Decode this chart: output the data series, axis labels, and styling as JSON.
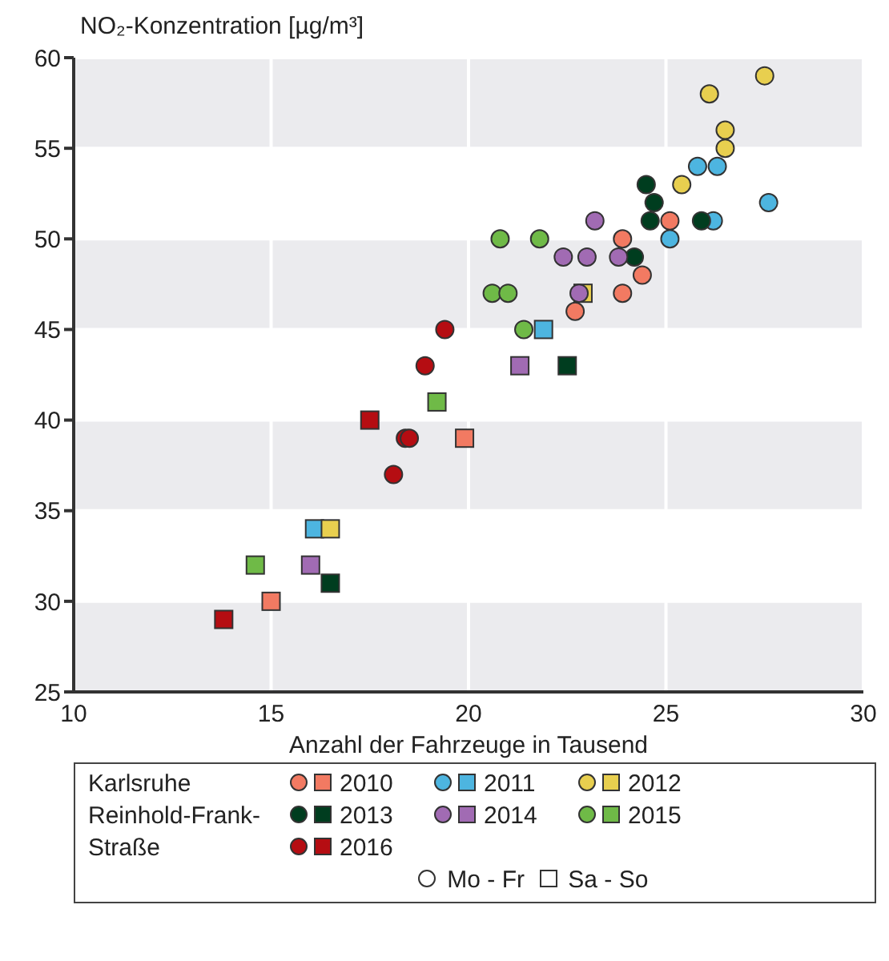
{
  "chart_data": {
    "type": "scatter",
    "ylabel": "NO₂-Konzentration [µg/m³]",
    "xlabel": "Anzahl der Fahrzeuge in Tausend",
    "legend_title": "Karlsruhe Reinhold-Frank-Straße",
    "annotations": [
      "Mo - Fr",
      "Sa - So"
    ],
    "xlim": [
      10,
      30
    ],
    "xticks": [
      10,
      15,
      20,
      25,
      30
    ],
    "ylim": [
      25,
      60
    ],
    "yticks": [
      25,
      30,
      35,
      40,
      45,
      50,
      55,
      60
    ],
    "grid": true,
    "legend": "bottom",
    "series": [
      {
        "color": "#f27a62",
        "marker": "circle",
        "x": [
          25.1,
          23.9,
          24.4,
          23.9,
          22.7
        ],
        "values": [
          51,
          50,
          48,
          47,
          46
        ]
      },
      {
        "name": "2010",
        "color": "#f27a62",
        "marker": "square",
        "x": [
          19.9,
          15.0
        ],
        "values": [
          39,
          30
        ]
      },
      {
        "color": "#4db5e0",
        "marker": "circle",
        "x": [
          25.8,
          26.3,
          27.6,
          26.2,
          25.1
        ],
        "values": [
          54,
          54,
          52,
          51,
          50
        ]
      },
      {
        "name": "2011",
        "color": "#4db5e0",
        "marker": "square",
        "x": [
          21.9,
          16.1
        ],
        "values": [
          45,
          34
        ]
      },
      {
        "color": "#e8cf4f",
        "marker": "circle",
        "x": [
          27.5,
          26.1,
          26.5,
          26.5,
          25.4
        ],
        "values": [
          59,
          58,
          56,
          55,
          53
        ]
      },
      {
        "name": "2012",
        "color": "#e8cf4f",
        "marker": "square",
        "x": [
          22.9,
          16.5
        ],
        "values": [
          47,
          34
        ]
      },
      {
        "color": "#003d1f",
        "marker": "circle",
        "x": [
          24.5,
          24.7,
          24.6,
          25.9,
          24.2
        ],
        "values": [
          53,
          52,
          51,
          51,
          49
        ]
      },
      {
        "name": "2013",
        "color": "#003d1f",
        "marker": "square",
        "x": [
          22.5,
          16.5
        ],
        "values": [
          43,
          31
        ]
      },
      {
        "color": "#a16bb3",
        "marker": "circle",
        "x": [
          23.2,
          22.4,
          23.0,
          23.8,
          22.8
        ],
        "values": [
          51,
          49,
          49,
          49,
          47
        ]
      },
      {
        "name": "2014",
        "color": "#a16bb3",
        "marker": "square",
        "x": [
          21.3,
          16.0
        ],
        "values": [
          43,
          32
        ]
      },
      {
        "color": "#6fba47",
        "marker": "circle",
        "x": [
          20.8,
          21.8,
          20.6,
          21.0,
          21.4
        ],
        "values": [
          50,
          50,
          47,
          47,
          45
        ]
      },
      {
        "name": "2015",
        "color": "#6fba47",
        "marker": "square",
        "x": [
          19.2,
          14.6
        ],
        "values": [
          41,
          32
        ]
      },
      {
        "color": "#b50d12",
        "marker": "circle",
        "x": [
          19.4,
          18.9,
          18.4,
          18.5,
          18.1
        ],
        "values": [
          45,
          43,
          39,
          39,
          37
        ]
      },
      {
        "name": "2016",
        "color": "#b50d12",
        "marker": "square",
        "x": [
          17.5,
          13.8
        ],
        "values": [
          40,
          29
        ]
      }
    ]
  }
}
